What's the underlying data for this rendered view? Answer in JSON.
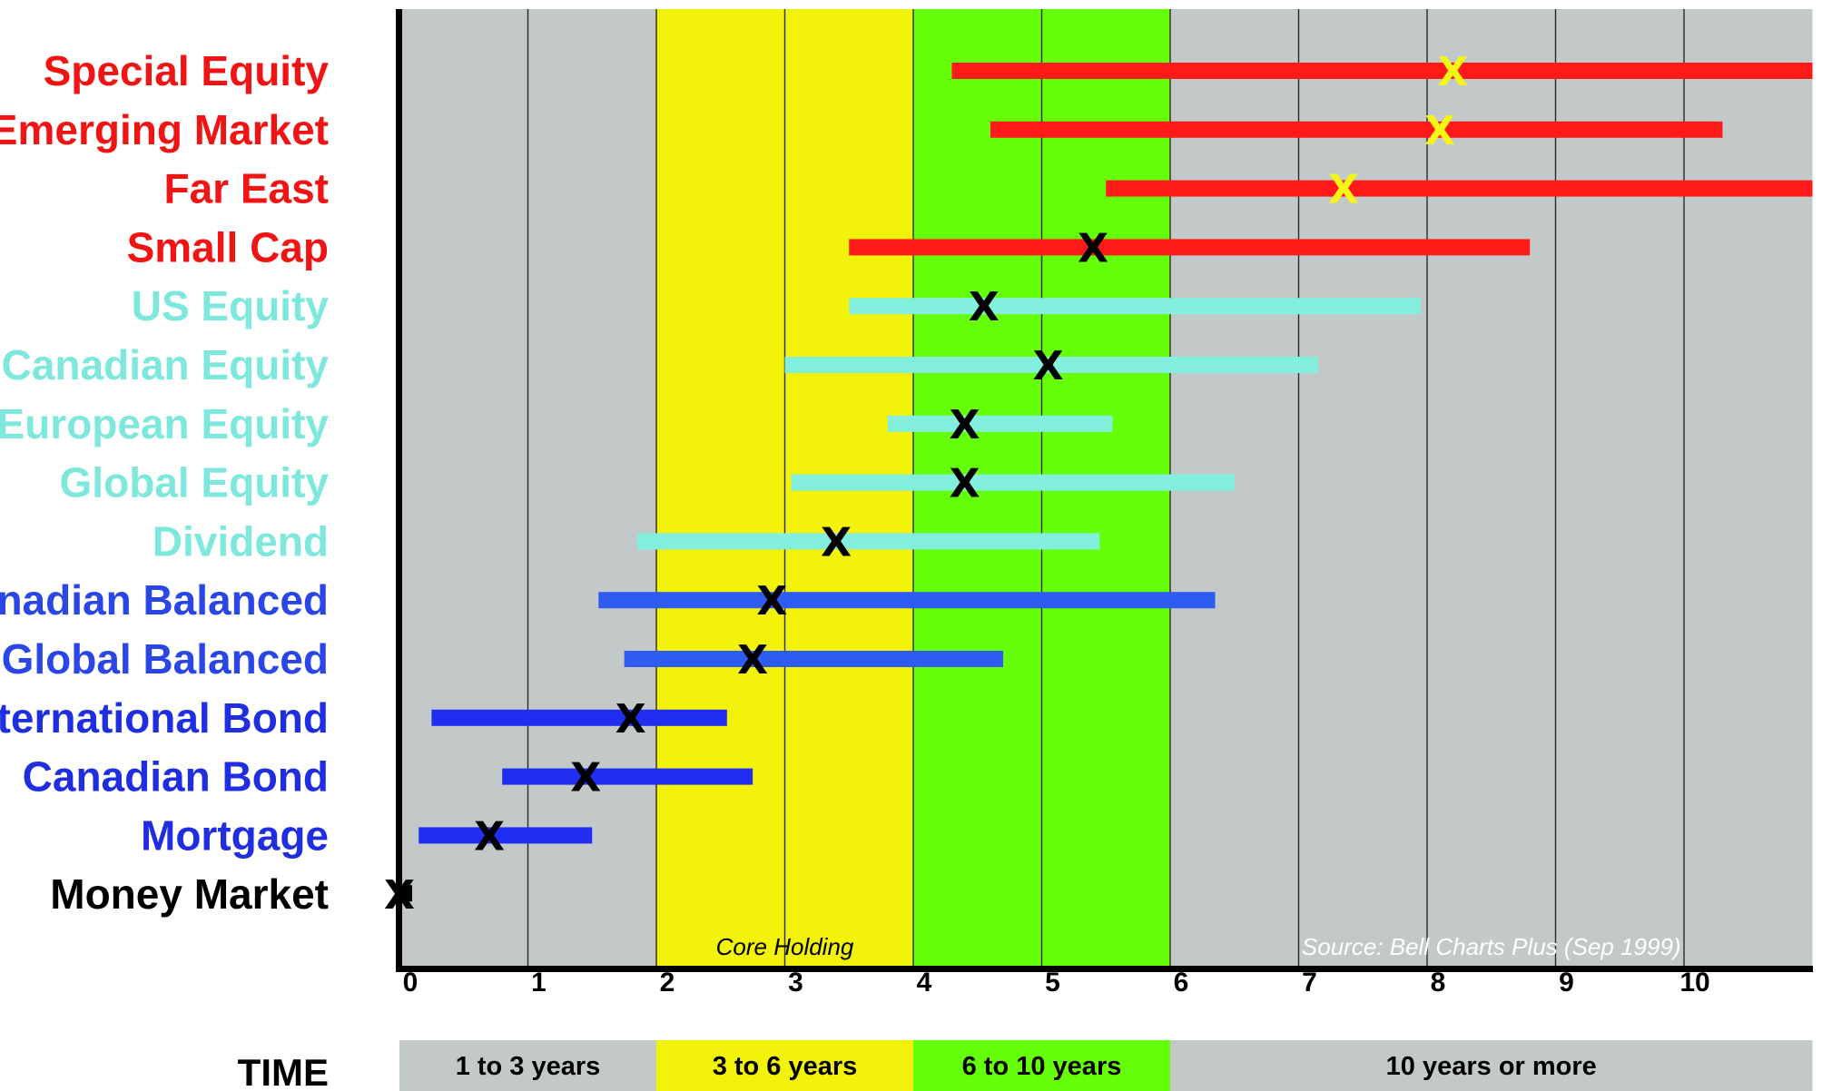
{
  "chart_data": {
    "type": "range",
    "title": "",
    "xlabel": "TIME",
    "ylabel": "",
    "xlim": [
      0,
      11
    ],
    "x_ticks": [
      "0",
      "1",
      "2",
      "3",
      "4",
      "5",
      "6",
      "7",
      "8",
      "9",
      "10"
    ],
    "grid": true,
    "zones": [
      {
        "label": "1 to 3 years",
        "from": 0,
        "to": 2,
        "color": "#c3c9c8"
      },
      {
        "label": "3 to 6 years",
        "from": 2,
        "to": 4,
        "color": "#f2f20a"
      },
      {
        "label": "6 to 10 years",
        "from": 4,
        "to": 6,
        "color": "#66ff0a"
      },
      {
        "label": "10 years or more",
        "from": 6,
        "to": 11,
        "color": "#c3c9c8"
      }
    ],
    "series": [
      {
        "name": "Special Equity",
        "min": 4.3,
        "max": 11.0,
        "mark": 8.2,
        "color": "#ff1a1a",
        "label_color": "#f01414",
        "mark_color": "#f5f516"
      },
      {
        "name": "Emerging Market",
        "min": 4.6,
        "max": 10.3,
        "mark": 8.1,
        "color": "#ff1a1a",
        "label_color": "#f01414",
        "mark_color": "#f5f516"
      },
      {
        "name": "Far East",
        "min": 5.5,
        "max": 11.0,
        "mark": 7.35,
        "color": "#ff1a1a",
        "label_color": "#f01414",
        "mark_color": "#f5f516"
      },
      {
        "name": "Small Cap",
        "min": 3.5,
        "max": 8.8,
        "mark": 5.4,
        "color": "#ff1a1a",
        "label_color": "#f01414",
        "mark_color": "#000000"
      },
      {
        "name": "US Equity",
        "min": 3.5,
        "max": 7.95,
        "mark": 4.55,
        "color": "#82f0dc",
        "label_color": "#7ee8dc",
        "mark_color": "#000000"
      },
      {
        "name": "Canadian Equity",
        "min": 3.0,
        "max": 7.15,
        "mark": 5.05,
        "color": "#82f0dc",
        "label_color": "#7ee8dc",
        "mark_color": "#000000"
      },
      {
        "name": "European Equity",
        "min": 3.8,
        "max": 5.55,
        "mark": 4.4,
        "color": "#82f0dc",
        "label_color": "#7ee8dc",
        "mark_color": "#000000"
      },
      {
        "name": "Global Equity",
        "min": 3.05,
        "max": 6.5,
        "mark": 4.4,
        "color": "#82f0dc",
        "label_color": "#7ee8dc",
        "mark_color": "#000000"
      },
      {
        "name": "Dividend",
        "min": 1.85,
        "max": 5.45,
        "mark": 3.4,
        "color": "#82f0dc",
        "label_color": "#7ee8dc",
        "mark_color": "#000000"
      },
      {
        "name": "Canadian Balanced",
        "min": 1.55,
        "max": 6.35,
        "mark": 2.9,
        "color": "#2e5cf0",
        "label_color": "#2a46e6",
        "mark_color": "#000000"
      },
      {
        "name": "Global Balanced",
        "min": 1.75,
        "max": 4.7,
        "mark": 2.75,
        "color": "#2e5cf0",
        "label_color": "#2a46e6",
        "mark_color": "#000000"
      },
      {
        "name": "International Bond",
        "min": 0.25,
        "max": 2.55,
        "mark": 1.8,
        "color": "#1f2ef0",
        "label_color": "#1f2ee0",
        "mark_color": "#000000"
      },
      {
        "name": "Canadian Bond",
        "min": 0.8,
        "max": 2.75,
        "mark": 1.45,
        "color": "#1f2ef0",
        "label_color": "#1f2ee0",
        "mark_color": "#000000"
      },
      {
        "name": "Mortgage",
        "min": 0.15,
        "max": 1.5,
        "mark": 0.7,
        "color": "#1f2ef0",
        "label_color": "#1f2ee0",
        "mark_color": "#000000"
      },
      {
        "name": "Money Market",
        "min": 0.0,
        "max": 0.1,
        "mark": 0.0,
        "color": "#000000",
        "label_color": "#000000",
        "mark_color": "#000000"
      }
    ],
    "mark_symbol": "X",
    "annotations": [
      {
        "text": "Core Holding",
        "x": 3,
        "color": "#000000"
      },
      {
        "text": "Source:  Bell Charts Plus (Sep 1999)",
        "x": 8.5,
        "color": "#ffffff"
      }
    ]
  }
}
